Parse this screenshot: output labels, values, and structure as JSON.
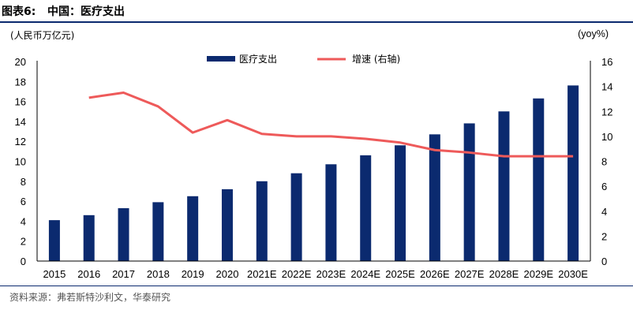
{
  "header": {
    "figure_no": "图表6:",
    "title": "中国：医疗支出"
  },
  "units": {
    "left": "(人民币万亿元)",
    "right": "(yoy%)"
  },
  "source": "资料来源：弗若斯特沙利文，华泰研究",
  "colors": {
    "bar": "#0b2a6f",
    "line": "#ee5a5a",
    "rule": "#0b2a6f"
  },
  "chart_data": {
    "type": "bar",
    "categories": [
      "2015",
      "2016",
      "2017",
      "2018",
      "2019",
      "2020",
      "2021E",
      "2022E",
      "2023E",
      "2024E",
      "2025E",
      "2026E",
      "2027E",
      "2028E",
      "2029E",
      "2030E"
    ],
    "series": [
      {
        "name": "医疗支出",
        "type": "bar",
        "axis": "left",
        "values": [
          4.1,
          4.6,
          5.3,
          5.9,
          6.5,
          7.2,
          8.0,
          8.8,
          9.7,
          10.6,
          11.6,
          12.7,
          13.8,
          15.0,
          16.3,
          17.6
        ]
      },
      {
        "name": "增速 (右轴)",
        "type": "line",
        "axis": "right",
        "values": [
          null,
          13.1,
          13.5,
          12.4,
          10.3,
          11.3,
          10.2,
          10.0,
          10.0,
          9.8,
          9.5,
          8.9,
          8.7,
          8.4,
          8.4,
          8.4
        ]
      }
    ],
    "y_left": {
      "range": [
        0,
        20
      ],
      "ticks": [
        "0",
        "2",
        "4",
        "6",
        "8",
        "10",
        "12",
        "14",
        "16",
        "18",
        "20"
      ]
    },
    "y_right": {
      "range": [
        0,
        16
      ],
      "ticks": [
        "0",
        "2",
        "4",
        "6",
        "8",
        "10",
        "12",
        "14",
        "16"
      ]
    },
    "grid": false,
    "legend_position": "top"
  }
}
